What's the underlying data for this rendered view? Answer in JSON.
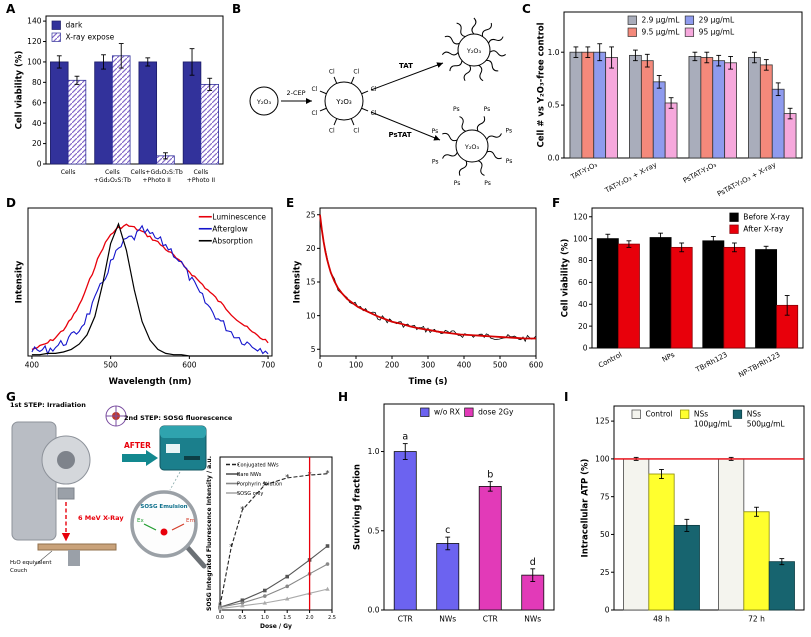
{
  "panels": {
    "A": {
      "label": "A"
    },
    "B": {
      "label": "B",
      "core": "Y₂O₃",
      "reagent": "2-CEP",
      "cl": "Cl",
      "tat": "TAT",
      "pstat": "PsTAT",
      "ps": "Ps"
    },
    "C": {
      "label": "C"
    },
    "D": {
      "label": "D"
    },
    "E": {
      "label": "E"
    },
    "F": {
      "label": "F"
    },
    "G": {
      "label": "G",
      "step1": "1st STEP: Irradiation",
      "step2": "2nd STEP: SOSG fluorescence",
      "after": "AFTER",
      "xray": "6 MeV X-Ray",
      "h2o": "H₂O equivalent",
      "couch": "Couch",
      "sosg": "SOSG Emulsion",
      "ex": "Ex",
      "em": "Em"
    },
    "H": {
      "label": "H"
    },
    "I": {
      "label": "I"
    }
  },
  "chart_data": [
    {
      "id": "chart-A",
      "type": "bar",
      "ylabel": "Cell viability (%)",
      "ylim": [
        0,
        145
      ],
      "yticks": [
        0,
        20,
        40,
        60,
        80,
        100,
        120,
        140
      ],
      "categories": [
        "Cells",
        "Cells\n+Gd₂O₂S:Tb",
        "Cells+Gd₂O₂S:Tb\n+Photo II",
        "Cells\n+Photo II"
      ],
      "series": [
        {
          "name": "dark",
          "color": "#32329b",
          "edge": "#1c1c66",
          "values": [
            100,
            100,
            100,
            100
          ],
          "errors": [
            6,
            7,
            4,
            13
          ]
        },
        {
          "name": "X-ray expose",
          "color": "#8468c8",
          "edge": "#32329b",
          "hatch": true,
          "values": [
            82,
            106,
            8,
            78
          ],
          "errors": [
            4,
            12,
            3,
            6
          ]
        }
      ],
      "legend": {
        "position": "top-left"
      }
    },
    {
      "id": "chart-C",
      "type": "bar",
      "ylabel": "Cell # vs Y₂O₃-free control",
      "ylim": [
        0,
        1.38
      ],
      "yticks": [
        0.0,
        0.5,
        1.0
      ],
      "categories": [
        "TAT-Y₂O₃",
        "TAT-Y₂O₃ + X-ray",
        "PsTAT-Y₂O₃",
        "PsTAT-Y₂O₃ + X-ray"
      ],
      "rotate_labels": true,
      "series": [
        {
          "name": "2.9 μg/mL",
          "color": "#a9adbb",
          "values": [
            1.0,
            0.97,
            0.96,
            0.95
          ],
          "errors": [
            0.05,
            0.05,
            0.04,
            0.05
          ]
        },
        {
          "name": "9.5 μg/mL",
          "color": "#f4897b",
          "values": [
            1.0,
            0.92,
            0.95,
            0.88
          ],
          "errors": [
            0.05,
            0.06,
            0.05,
            0.05
          ]
        },
        {
          "name": "29 μg/mL",
          "color": "#8f9bee",
          "values": [
            1.0,
            0.72,
            0.92,
            0.65
          ],
          "errors": [
            0.08,
            0.06,
            0.05,
            0.06
          ]
        },
        {
          "name": "95 μg/mL",
          "color": "#f6a8dc",
          "values": [
            0.95,
            0.52,
            0.9,
            0.42
          ],
          "errors": [
            0.1,
            0.05,
            0.06,
            0.05
          ]
        }
      ],
      "legend": {
        "position": "top",
        "columns": 2
      }
    },
    {
      "id": "chart-D",
      "type": "line",
      "xlabel": "Wavelength (nm)",
      "ylabel": "Intensity",
      "xlim": [
        395,
        705
      ],
      "xticks": [
        400,
        500,
        600,
        700
      ],
      "ylim": [
        0,
        1.12
      ],
      "series": [
        {
          "name": "Luminescence",
          "color": "#e8000b",
          "width": 1.3,
          "noise": 0.012,
          "x": [
            400,
            410,
            420,
            430,
            440,
            450,
            460,
            470,
            480,
            490,
            500,
            510,
            520,
            530,
            540,
            550,
            560,
            570,
            580,
            590,
            600,
            610,
            620,
            630,
            640,
            650,
            660,
            670,
            680,
            690,
            700
          ],
          "y": [
            0.05,
            0.07,
            0.1,
            0.14,
            0.2,
            0.28,
            0.38,
            0.52,
            0.68,
            0.82,
            0.92,
            0.97,
            0.99,
            0.97,
            0.94,
            0.9,
            0.86,
            0.81,
            0.76,
            0.7,
            0.64,
            0.58,
            0.52,
            0.46,
            0.4,
            0.34,
            0.28,
            0.23,
            0.18,
            0.14,
            0.11
          ]
        },
        {
          "name": "Afterglow",
          "color": "#1414cc",
          "width": 1.1,
          "noise": 0.035,
          "x": [
            400,
            410,
            420,
            430,
            440,
            450,
            460,
            470,
            480,
            490,
            500,
            510,
            520,
            530,
            540,
            550,
            560,
            570,
            580,
            590,
            600,
            610,
            620,
            630,
            640,
            650,
            660,
            670,
            680,
            690,
            700
          ],
          "y": [
            0.03,
            0.04,
            0.05,
            0.07,
            0.1,
            0.14,
            0.2,
            0.3,
            0.42,
            0.56,
            0.7,
            0.8,
            0.88,
            0.9,
            0.95,
            0.92,
            0.88,
            0.84,
            0.78,
            0.7,
            0.6,
            0.5,
            0.41,
            0.33,
            0.26,
            0.2,
            0.15,
            0.11,
            0.08,
            0.06,
            0.04
          ]
        },
        {
          "name": "Absorption",
          "color": "#000000",
          "width": 1.2,
          "x": [
            400,
            410,
            420,
            430,
            440,
            450,
            460,
            470,
            480,
            490,
            500,
            510,
            520,
            530,
            540,
            550,
            560,
            570,
            580,
            590,
            600,
            610,
            620,
            630,
            640,
            650,
            660,
            670,
            680,
            690,
            700
          ],
          "y": [
            0.01,
            0.01,
            0.02,
            0.02,
            0.03,
            0.05,
            0.09,
            0.16,
            0.3,
            0.55,
            0.85,
            1.0,
            0.8,
            0.5,
            0.26,
            0.12,
            0.05,
            0.02,
            0.01,
            0.01,
            0.0,
            0.0,
            0.0,
            0.0,
            0.0,
            0.0,
            0.0,
            0.0,
            0.0,
            0.0,
            0.0
          ]
        }
      ],
      "legend": {
        "position": "top-right"
      }
    },
    {
      "id": "chart-E",
      "type": "line",
      "xlabel": "Time (s)",
      "ylabel": "Intensity",
      "xlim": [
        0,
        600
      ],
      "xticks": [
        0,
        100,
        200,
        300,
        400,
        500,
        600
      ],
      "ylim": [
        4,
        26
      ],
      "yticks": [
        5,
        10,
        15,
        20,
        25
      ],
      "series": [
        {
          "color": "#000000",
          "width": 0.8,
          "noise": 0.45,
          "x": [
            0,
            5,
            10,
            15,
            20,
            25,
            30,
            40,
            50,
            60,
            75,
            90,
            105,
            120,
            140,
            160,
            180,
            200,
            225,
            250,
            275,
            300,
            330,
            360,
            390,
            420,
            450,
            480,
            510,
            540,
            570,
            600
          ],
          "y": [
            25.0,
            22.8,
            21.0,
            19.5,
            18.3,
            17.3,
            16.4,
            15.1,
            14.1,
            13.4,
            12.5,
            11.9,
            11.3,
            10.9,
            10.4,
            9.9,
            9.5,
            9.1,
            8.8,
            8.4,
            8.1,
            7.9,
            7.6,
            7.4,
            7.2,
            7.1,
            7.0,
            6.9,
            6.8,
            6.7,
            6.6,
            6.6
          ]
        },
        {
          "color": "#d40000",
          "width": 1.8,
          "x": [
            0,
            5,
            10,
            15,
            20,
            25,
            30,
            40,
            50,
            60,
            75,
            90,
            105,
            120,
            140,
            160,
            180,
            200,
            225,
            250,
            275,
            300,
            330,
            360,
            390,
            420,
            450,
            480,
            510,
            540,
            570,
            600
          ],
          "y": [
            25.0,
            22.8,
            21.0,
            19.5,
            18.3,
            17.3,
            16.4,
            15.1,
            14.1,
            13.4,
            12.5,
            11.9,
            11.3,
            10.9,
            10.4,
            9.9,
            9.5,
            9.1,
            8.8,
            8.4,
            8.1,
            7.9,
            7.6,
            7.4,
            7.2,
            7.1,
            7.0,
            6.9,
            6.8,
            6.7,
            6.6,
            6.6
          ]
        }
      ]
    },
    {
      "id": "chart-F",
      "type": "bar",
      "ylabel": "Cell viability (%)",
      "ylim": [
        0,
        128
      ],
      "yticks": [
        0,
        20,
        40,
        60,
        80,
        100,
        120
      ],
      "categories": [
        "Control",
        "NPs",
        "TBrRh123",
        "NP-TBrRh123"
      ],
      "rotate_labels": true,
      "series": [
        {
          "name": "Before X-ray",
          "color": "#000000",
          "edge": "#000000",
          "values": [
            100,
            101,
            98,
            90
          ],
          "errors": [
            4,
            4,
            4,
            3
          ]
        },
        {
          "name": "After X-ray",
          "color": "#e8000b",
          "edge": "#8a0006",
          "values": [
            95,
            92,
            92,
            39
          ],
          "errors": [
            3,
            4,
            4,
            9
          ]
        }
      ],
      "legend": {
        "position": "top-right"
      }
    },
    {
      "id": "chart-G",
      "type": "line",
      "xlabel": "Dose / Gy",
      "ylabel": "SOSG Integrated Fluorescence Intensity / a.u.",
      "xlim": [
        0,
        2.5
      ],
      "xticks": [
        0.0,
        0.5,
        1.0,
        1.5,
        2.0,
        2.5
      ],
      "ylim": [
        0,
        1.1
      ],
      "vline": {
        "x": 2.0,
        "color": "#e8000b"
      },
      "series": [
        {
          "name": "Conjugated NWs",
          "color": "#222222",
          "dash": [
            4,
            2
          ],
          "marker": "star",
          "x": [
            0,
            0.25,
            0.5,
            1.0,
            1.5,
            2.0,
            2.4
          ],
          "y": [
            0.03,
            0.45,
            0.72,
            0.9,
            0.95,
            0.97,
            0.98
          ]
        },
        {
          "name": "Bare NWs",
          "color": "#555555",
          "marker": "square",
          "x": [
            0,
            0.5,
            1.0,
            1.5,
            2.0,
            2.4
          ],
          "y": [
            0.02,
            0.07,
            0.14,
            0.24,
            0.36,
            0.46
          ]
        },
        {
          "name": "Porphyrin solution",
          "color": "#888888",
          "marker": "circle",
          "x": [
            0,
            0.5,
            1.0,
            1.5,
            2.0,
            2.4
          ],
          "y": [
            0.02,
            0.05,
            0.1,
            0.17,
            0.26,
            0.33
          ]
        },
        {
          "name": "SOSG only",
          "color": "#aaaaaa",
          "marker": "triangle",
          "x": [
            0,
            0.5,
            1.0,
            1.5,
            2.0,
            2.4
          ],
          "y": [
            0.01,
            0.03,
            0.05,
            0.08,
            0.12,
            0.15
          ]
        }
      ],
      "legend": {
        "position": "top-left"
      }
    },
    {
      "id": "chart-H",
      "type": "bar",
      "ylabel": "Surviving fraction",
      "ylim": [
        0,
        1.3
      ],
      "yticks": [
        0.0,
        0.5,
        1.0
      ],
      "bars": [
        {
          "label": "CTR",
          "value": 1.0,
          "error": 0.05,
          "color": "#6c63f0",
          "annotation": "a"
        },
        {
          "label": "NWs",
          "value": 0.42,
          "error": 0.04,
          "color": "#6c63f0",
          "annotation": "c"
        },
        {
          "label": "CTR",
          "value": 0.78,
          "error": 0.03,
          "color": "#e23ab8",
          "annotation": "b"
        },
        {
          "label": "NWs",
          "value": 0.22,
          "error": 0.04,
          "color": "#e23ab8",
          "annotation": "d"
        }
      ],
      "legend_items": [
        {
          "label": "w/o RX",
          "color": "#6c63f0"
        },
        {
          "label": "dose 2Gy",
          "color": "#e23ab8"
        }
      ],
      "legend": {
        "position": "top",
        "columns": 2
      }
    },
    {
      "id": "chart-I",
      "type": "bar",
      "ylabel": "Intracellular ATP (%)",
      "ylim": [
        0,
        135
      ],
      "yticks": [
        0,
        25,
        50,
        75,
        100,
        125
      ],
      "categories": [
        "48 h",
        "72 h"
      ],
      "refline": {
        "y": 100,
        "color": "#e8000b"
      },
      "series": [
        {
          "name": "Control",
          "color": "#f4f4ee",
          "edge": "#444444",
          "values": [
            100,
            100
          ],
          "errors": [
            1,
            1
          ]
        },
        {
          "name": "NSs\n100μg/mL",
          "color": "#ffff2e",
          "edge": "#8a8a00",
          "values": [
            90,
            65
          ],
          "errors": [
            3,
            3
          ]
        },
        {
          "name": "NSs\n500μg/mL",
          "color": "#17646f",
          "edge": "#0c3c43",
          "values": [
            56,
            32
          ],
          "errors": [
            4,
            2
          ]
        }
      ],
      "legend": {
        "position": "top",
        "columns": 3
      }
    }
  ]
}
